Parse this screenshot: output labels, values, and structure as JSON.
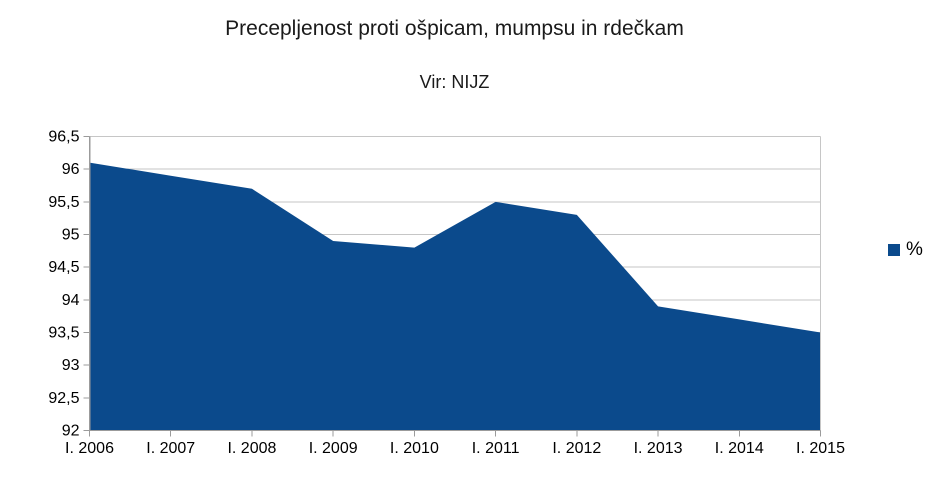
{
  "chart_data": {
    "type": "area",
    "title": "Precepljenost proti ošpicam, mumpsu in rdečkam",
    "subtitle": "Vir: NIJZ",
    "categories": [
      "I. 2006",
      "I. 2007",
      "I. 2008",
      "I. 2009",
      "I. 2010",
      "I. 2011",
      "I. 2012",
      "I. 2013",
      "I. 2014",
      "I. 2015"
    ],
    "series": [
      {
        "name": "%",
        "values": [
          96.1,
          95.9,
          95.7,
          94.9,
          94.8,
          95.5,
          95.3,
          93.9,
          93.7,
          93.5
        ]
      }
    ],
    "xlabel": "",
    "ylabel": "",
    "ylim": [
      92,
      96.5
    ],
    "ytick_step": 0.5,
    "decimal_separator": ",",
    "grid": "horizontal",
    "legend_position": "right",
    "colors": {
      "series": "#0b4a8c",
      "gridline": "#c6c6c6",
      "axis": "#9b9b9b",
      "text": "#000000",
      "background": "#ffffff"
    }
  }
}
